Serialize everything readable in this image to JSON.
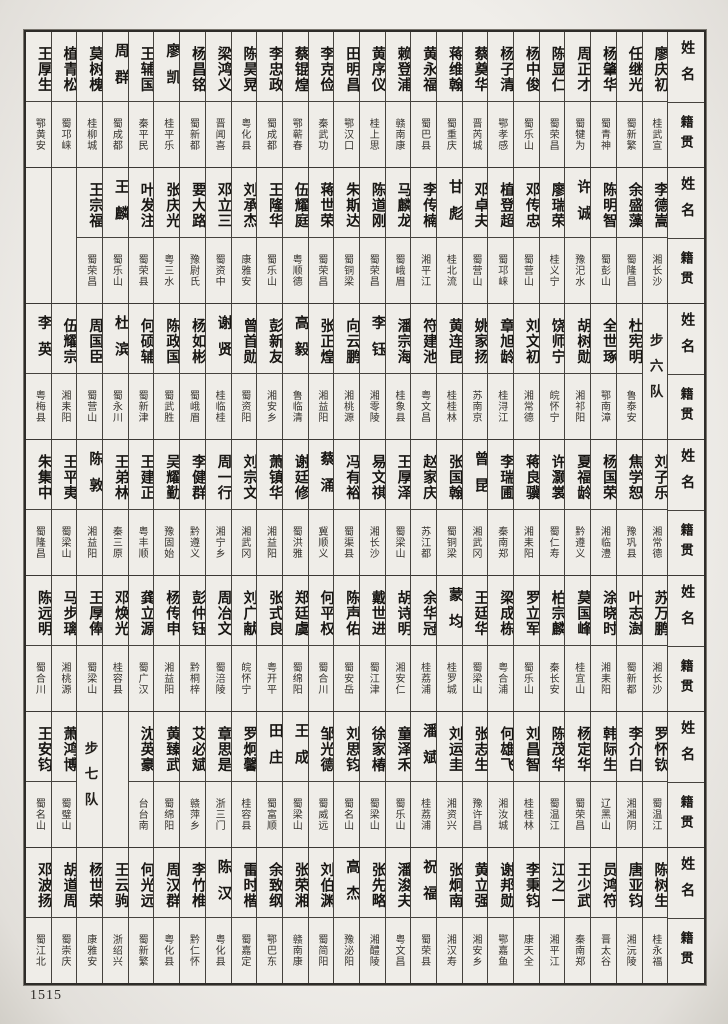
{
  "page_number": "1515",
  "column_headers": {
    "name": "姓名",
    "origin": "籍贯"
  },
  "unit_labels": {
    "band3": "步六队",
    "band6": "步七队"
  },
  "bands": [
    {
      "cells": [
        {
          "name": "王厚生",
          "origin": "鄂黄安"
        },
        {
          "name": "植青松",
          "origin": "蜀邛崃"
        },
        {
          "name": "莫树槐",
          "origin": "桂柳城"
        },
        {
          "name": "周群",
          "origin": "蜀成都"
        },
        {
          "name": "王辅国",
          "origin": "秦平民"
        },
        {
          "name": "廖凯",
          "origin": "桂平乐"
        },
        {
          "name": "杨昌铭",
          "origin": "蜀新都"
        },
        {
          "name": "梁鸿义",
          "origin": "晋闻喜"
        },
        {
          "name": "陈昊晃",
          "origin": "粤化县"
        },
        {
          "name": "李忠政",
          "origin": "蜀成都"
        },
        {
          "name": "蔡锟煌",
          "origin": "鄂蕲春"
        },
        {
          "name": "李克俭",
          "origin": "秦武功"
        },
        {
          "name": "田明昌",
          "origin": "鄂汉口"
        },
        {
          "name": "黄序仪",
          "origin": "桂上思"
        },
        {
          "name": "赖登浦",
          "origin": "赣南康"
        },
        {
          "name": "黄永福",
          "origin": "蜀巴县"
        },
        {
          "name": "蒋维翰",
          "origin": "蜀重庆"
        },
        {
          "name": "蔡奠华",
          "origin": "晋芮城"
        },
        {
          "name": "杨子清",
          "origin": "鄂孝感"
        },
        {
          "name": "杨中俊",
          "origin": "蜀乐山"
        },
        {
          "name": "陈显仁",
          "origin": "蜀荣昌"
        },
        {
          "name": "周正才",
          "origin": "蜀犍为"
        },
        {
          "name": "杨肇华",
          "origin": "蜀青神"
        },
        {
          "name": "任继光",
          "origin": "蜀新繁"
        },
        {
          "name": "廖庆初",
          "origin": "桂武宣"
        }
      ]
    },
    {
      "cells": [
        {
          "empty": true
        },
        {
          "empty": true
        },
        {
          "name": "王宗福",
          "origin": "蜀荣昌"
        },
        {
          "name": "王麟",
          "origin": "蜀乐山"
        },
        {
          "name": "叶发注",
          "origin": "蜀荣县"
        },
        {
          "name": "张庆光",
          "origin": "粤三水"
        },
        {
          "name": "要大路",
          "origin": "豫尉氏"
        },
        {
          "name": "邓立三",
          "origin": "蜀资中"
        },
        {
          "name": "刘承杰",
          "origin": "康雅安"
        },
        {
          "name": "王隆华",
          "origin": "蜀乐山"
        },
        {
          "name": "伍耀庭",
          "origin": "粤顺德"
        },
        {
          "name": "蒋世荣",
          "origin": "蜀荣昌"
        },
        {
          "name": "朱斯达",
          "origin": "蜀铜梁"
        },
        {
          "name": "陈道刚",
          "origin": "蜀荣昌"
        },
        {
          "name": "马麟龙",
          "origin": "蜀峨眉"
        },
        {
          "name": "李传楠",
          "origin": "湘平江"
        },
        {
          "name": "甘彪",
          "origin": "桂北流"
        },
        {
          "name": "邓卓夫",
          "origin": "蜀营山"
        },
        {
          "name": "植登超",
          "origin": "蜀邛崃"
        },
        {
          "name": "邓传忠",
          "origin": "蜀营山"
        },
        {
          "name": "廖瑞荣",
          "origin": "桂义宁"
        },
        {
          "name": "许诚",
          "origin": "豫汜水"
        },
        {
          "name": "陈明智",
          "origin": "蜀彭山"
        },
        {
          "name": "余盛藻",
          "origin": "蜀隆昌"
        },
        {
          "name": "李德嵩",
          "origin": "湘长沙"
        }
      ]
    },
    {
      "cells": [
        {
          "name": "李英",
          "origin": "粤梅县"
        },
        {
          "name": "伍耀宗",
          "origin": "湘耒阳"
        },
        {
          "name": "周国臣",
          "origin": "蜀营山"
        },
        {
          "name": "杜滨",
          "origin": "蜀永川"
        },
        {
          "name": "何硕辅",
          "origin": "蜀新津"
        },
        {
          "name": "陈政国",
          "origin": "蜀武胜"
        },
        {
          "name": "杨如彬",
          "origin": "蜀峨眉"
        },
        {
          "name": "谢贤",
          "origin": "桂临桂"
        },
        {
          "name": "曾首勋",
          "origin": "蜀资阳"
        },
        {
          "name": "彭新友",
          "origin": "湘安乡"
        },
        {
          "name": "高毅",
          "origin": "鲁临清"
        },
        {
          "name": "张正煌",
          "origin": "湘益阳"
        },
        {
          "name": "向云鹏",
          "origin": "湘桃源"
        },
        {
          "name": "李钰",
          "origin": "湘零陵"
        },
        {
          "name": "潘宗海",
          "origin": "桂象县"
        },
        {
          "name": "符建池",
          "origin": "粤文昌"
        },
        {
          "name": "黄连昆",
          "origin": "桂桂林"
        },
        {
          "name": "姚家扬",
          "origin": "苏南京"
        },
        {
          "name": "章旭龄",
          "origin": "桂浔江"
        },
        {
          "name": "刘文初",
          "origin": "湘常德"
        },
        {
          "name": "饶师宁",
          "origin": "皖怀宁"
        },
        {
          "name": "胡树勋",
          "origin": "湘祁阳"
        },
        {
          "name": "全世琢",
          "origin": "鄂南漳"
        },
        {
          "name": "杜宪明",
          "origin": "鲁泰安"
        },
        {
          "unit": "步六队"
        }
      ]
    },
    {
      "cells": [
        {
          "name": "朱集中",
          "origin": "蜀隆昌"
        },
        {
          "name": "王平夷",
          "origin": "蜀梁山"
        },
        {
          "name": "陈敦",
          "origin": "湘益阳"
        },
        {
          "name": "王弟林",
          "origin": "秦三原"
        },
        {
          "name": "王建正",
          "origin": "粤丰顺"
        },
        {
          "name": "吴耀勤",
          "origin": "豫固始"
        },
        {
          "name": "李健群",
          "origin": "黔遵义"
        },
        {
          "name": "周一行",
          "origin": "湘宁乡"
        },
        {
          "name": "刘宗文",
          "origin": "湘武冈"
        },
        {
          "name": "萧镇华",
          "origin": "湘益阳"
        },
        {
          "name": "谢廷修",
          "origin": "蜀洪雅"
        },
        {
          "name": "蔡涌",
          "origin": "冀顺义"
        },
        {
          "name": "冯有裕",
          "origin": "蜀渠县"
        },
        {
          "name": "易文祺",
          "origin": "湘长沙"
        },
        {
          "name": "王厚泽",
          "origin": "蜀梁山"
        },
        {
          "name": "赵家庆",
          "origin": "苏江都"
        },
        {
          "name": "张国翰",
          "origin": "蜀铜梁"
        },
        {
          "name": "曾昆",
          "origin": "湘武冈"
        },
        {
          "name": "李瑞圃",
          "origin": "秦南郑"
        },
        {
          "name": "蒋良骥",
          "origin": "湘耒阳"
        },
        {
          "name": "许灏裳",
          "origin": "蜀仁寿"
        },
        {
          "name": "夏福龄",
          "origin": "黔遵义"
        },
        {
          "name": "杨国荣",
          "origin": "湘临澧"
        },
        {
          "name": "焦学恕",
          "origin": "豫巩县"
        },
        {
          "name": "刘子乐",
          "origin": "湘常德"
        }
      ]
    },
    {
      "cells": [
        {
          "name": "陈远明",
          "origin": "蜀合川"
        },
        {
          "name": "马步璃",
          "origin": "湘桃源"
        },
        {
          "name": "王厚俸",
          "origin": "蜀梁山"
        },
        {
          "name": "邓焕光",
          "origin": "桂容县"
        },
        {
          "name": "龚立源",
          "origin": "蜀广汉"
        },
        {
          "name": "杨传申",
          "origin": "湘益阳"
        },
        {
          "name": "彭仲钰",
          "origin": "黔桐梓"
        },
        {
          "name": "周冶文",
          "origin": "蜀涪陵"
        },
        {
          "name": "刘广献",
          "origin": "皖怀宁"
        },
        {
          "name": "张式良",
          "origin": "粤开平"
        },
        {
          "name": "郑廷虞",
          "origin": "蜀绵阳"
        },
        {
          "name": "何平权",
          "origin": "蜀合川"
        },
        {
          "name": "陈声佑",
          "origin": "蜀安岳"
        },
        {
          "name": "戴世进",
          "origin": "蜀江津"
        },
        {
          "name": "胡诗明",
          "origin": "湘安仁"
        },
        {
          "name": "余华冠",
          "origin": "桂荔浦"
        },
        {
          "name": "蒙均",
          "origin": "桂罗城"
        },
        {
          "name": "王廷华",
          "origin": "蜀梁山"
        },
        {
          "name": "梁成栋",
          "origin": "粤合浦"
        },
        {
          "name": "罗立军",
          "origin": "蜀乐山"
        },
        {
          "name": "柏宗麟",
          "origin": "秦长安"
        },
        {
          "name": "莫国峰",
          "origin": "桂宜山"
        },
        {
          "name": "涂晓时",
          "origin": "湘耒阳"
        },
        {
          "name": "叶志澍",
          "origin": "蜀新都"
        },
        {
          "name": "苏万鹏",
          "origin": "湘长沙"
        }
      ]
    },
    {
      "cells": [
        {
          "name": "王安钧",
          "origin": "蜀名山"
        },
        {
          "name": "萧鸿博",
          "origin": "蜀璧山"
        },
        {
          "unit": "步七队"
        },
        {
          "empty": true
        },
        {
          "name": "沈英豪",
          "origin": "台台南"
        },
        {
          "name": "黄臻武",
          "origin": "蜀绵阳"
        },
        {
          "name": "艾必斌",
          "origin": "赣萍乡"
        },
        {
          "name": "章思是",
          "origin": "浙三门"
        },
        {
          "name": "罗炯馨",
          "origin": "桂容县"
        },
        {
          "name": "田庄",
          "origin": "蜀富顺"
        },
        {
          "name": "王成",
          "origin": "蜀梁山"
        },
        {
          "name": "邹光德",
          "origin": "蜀威远"
        },
        {
          "name": "刘思钧",
          "origin": "蜀名山"
        },
        {
          "name": "徐家椿",
          "origin": "蜀梁山"
        },
        {
          "name": "童泽禾",
          "origin": "蜀乐山"
        },
        {
          "name": "潘斌",
          "origin": "桂荔浦"
        },
        {
          "name": "刘运圭",
          "origin": "湘资兴"
        },
        {
          "name": "张志生",
          "origin": "豫许昌"
        },
        {
          "name": "何雄飞",
          "origin": "湘汝城"
        },
        {
          "name": "刘昌智",
          "origin": "桂桂林"
        },
        {
          "name": "陈茂华",
          "origin": "蜀温江"
        },
        {
          "name": "杨定华",
          "origin": "蜀荣昌"
        },
        {
          "name": "韩际生",
          "origin": "辽黑山"
        },
        {
          "name": "李介白",
          "origin": "湘湘阴"
        },
        {
          "name": "罗怀钦",
          "origin": "蜀温江"
        }
      ]
    },
    {
      "cells": [
        {
          "name": "邓波扬",
          "origin": "蜀江北"
        },
        {
          "name": "胡道周",
          "origin": "蜀崇庆"
        },
        {
          "name": "杨世荣",
          "origin": "康雅安"
        },
        {
          "name": "王云驹",
          "origin": "浙绍兴"
        },
        {
          "name": "何光远",
          "origin": "蜀新繁"
        },
        {
          "name": "周汉群",
          "origin": "粤化县"
        },
        {
          "name": "李竹椎",
          "origin": "黔仁怀"
        },
        {
          "name": "陈汉",
          "origin": "粤化县"
        },
        {
          "name": "雷时楷",
          "origin": "蜀嘉定"
        },
        {
          "name": "余致纲",
          "origin": "鄂巴东"
        },
        {
          "name": "张荣湘",
          "origin": "赣南康"
        },
        {
          "name": "刘伯渊",
          "origin": "蜀简阳"
        },
        {
          "name": "高杰",
          "origin": "豫泌阳"
        },
        {
          "name": "张先略",
          "origin": "湘醴陵"
        },
        {
          "name": "潘浚夫",
          "origin": "粤文昌"
        },
        {
          "name": "祝福",
          "origin": "蜀荣县"
        },
        {
          "name": "张炯南",
          "origin": "湘汉寿"
        },
        {
          "name": "黄立强",
          "origin": "湘安乡"
        },
        {
          "name": "谢邦勋",
          "origin": "鄂嘉鱼"
        },
        {
          "name": "李秉钧",
          "origin": "康天全"
        },
        {
          "name": "江之一",
          "origin": "湘平江"
        },
        {
          "name": "王少武",
          "origin": "秦南郑"
        },
        {
          "name": "员鸿符",
          "origin": "晋太谷"
        },
        {
          "name": "唐亚钧",
          "origin": "湘沅陵"
        },
        {
          "name": "陈树生",
          "origin": "桂永福"
        }
      ]
    }
  ]
}
